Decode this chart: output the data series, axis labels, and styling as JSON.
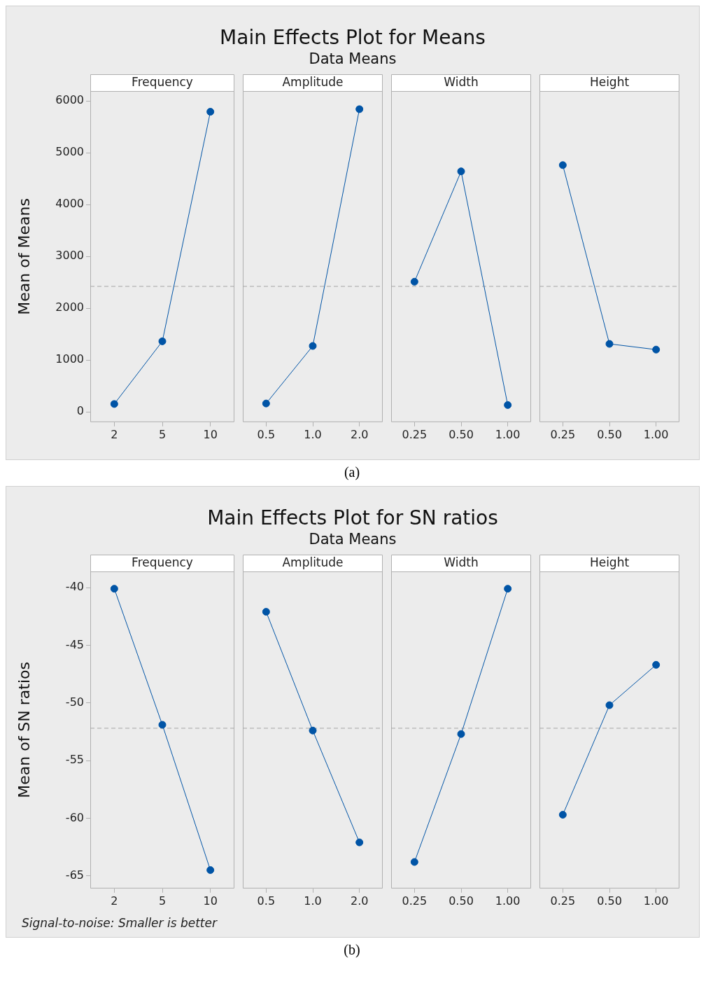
{
  "chart_data": [
    {
      "type": "other",
      "title": "Main Effects Plot for Means",
      "subtitle": "Data Means",
      "annotations": [
        "(a)"
      ]
    },
    {
      "type": "line",
      "title": "Frequency",
      "ylabel": "Mean of Means",
      "categories": [
        "2",
        "5",
        "10"
      ],
      "values": [
        150,
        1360,
        5790
      ],
      "color": "#0054a6",
      "ylim": [
        -200,
        6190
      ],
      "yticks": [
        0,
        1000,
        2000,
        3000,
        4000,
        5000,
        6000
      ],
      "marker": "circle",
      "line_style": "solid",
      "ref_lines": [
        {
          "axis": "y",
          "value": 2420,
          "color": "#a6a6a6",
          "line_style": "dashed"
        }
      ]
    },
    {
      "type": "line",
      "title": "Amplitude",
      "categories": [
        "0.5",
        "1.0",
        "2.0"
      ],
      "values": [
        160,
        1270,
        5840
      ],
      "color": "#0054a6",
      "ylim": [
        -200,
        6190
      ],
      "tick_labels": "x",
      "marker": "circle",
      "line_style": "solid",
      "ref_lines": [
        {
          "axis": "y",
          "value": 2420,
          "color": "#a6a6a6",
          "line_style": "dashed"
        }
      ]
    },
    {
      "type": "line",
      "title": "Width",
      "categories": [
        "0.25",
        "0.50",
        "1.00"
      ],
      "values": [
        2510,
        4640,
        130
      ],
      "color": "#0054a6",
      "ylim": [
        -200,
        6190
      ],
      "tick_labels": "x",
      "marker": "circle",
      "line_style": "solid",
      "ref_lines": [
        {
          "axis": "y",
          "value": 2420,
          "color": "#a6a6a6",
          "line_style": "dashed"
        }
      ]
    },
    {
      "type": "line",
      "title": "Height",
      "categories": [
        "0.25",
        "0.50",
        "1.00"
      ],
      "values": [
        4760,
        1310,
        1200
      ],
      "color": "#0054a6",
      "ylim": [
        -200,
        6190
      ],
      "tick_labels": "x",
      "marker": "circle",
      "line_style": "solid",
      "ref_lines": [
        {
          "axis": "y",
          "value": 2420,
          "color": "#a6a6a6",
          "line_style": "dashed"
        }
      ]
    },
    {
      "type": "other",
      "title": "Main Effects Plot for SN ratios",
      "subtitle": "Data Means",
      "annotations": [
        "Signal-to-noise: Smaller is better",
        "(b)"
      ]
    },
    {
      "type": "line",
      "title": "Frequency",
      "ylabel": "Mean of SN ratios",
      "categories": [
        "2",
        "5",
        "10"
      ],
      "values": [
        -40.1,
        -51.9,
        -64.5
      ],
      "color": "#0054a6",
      "ylim": [
        -66.1,
        -38.6
      ],
      "yticks": [
        -65,
        -60,
        -55,
        -50,
        -45,
        -40
      ],
      "marker": "circle",
      "line_style": "solid",
      "ref_lines": [
        {
          "axis": "y",
          "value": -52.2,
          "color": "#a6a6a6",
          "line_style": "dashed"
        }
      ]
    },
    {
      "type": "line",
      "title": "Amplitude",
      "categories": [
        "0.5",
        "1.0",
        "2.0"
      ],
      "values": [
        -42.1,
        -52.4,
        -62.1
      ],
      "color": "#0054a6",
      "ylim": [
        -66.1,
        -38.6
      ],
      "tick_labels": "x",
      "marker": "circle",
      "line_style": "solid",
      "ref_lines": [
        {
          "axis": "y",
          "value": -52.2,
          "color": "#a6a6a6",
          "line_style": "dashed"
        }
      ]
    },
    {
      "type": "line",
      "title": "Width",
      "categories": [
        "0.25",
        "0.50",
        "1.00"
      ],
      "values": [
        -63.8,
        -52.7,
        -40.1
      ],
      "color": "#0054a6",
      "ylim": [
        -66.1,
        -38.6
      ],
      "tick_labels": "x",
      "marker": "circle",
      "line_style": "solid",
      "ref_lines": [
        {
          "axis": "y",
          "value": -52.2,
          "color": "#a6a6a6",
          "line_style": "dashed"
        }
      ]
    },
    {
      "type": "line",
      "title": "Height",
      "categories": [
        "0.25",
        "0.50",
        "1.00"
      ],
      "values": [
        -59.7,
        -50.2,
        -46.7
      ],
      "color": "#0054a6",
      "ylim": [
        -66.1,
        -38.6
      ],
      "tick_labels": "x",
      "marker": "circle",
      "line_style": "solid",
      "ref_lines": [
        {
          "axis": "y",
          "value": -52.2,
          "color": "#a6a6a6",
          "line_style": "dashed"
        }
      ]
    }
  ]
}
